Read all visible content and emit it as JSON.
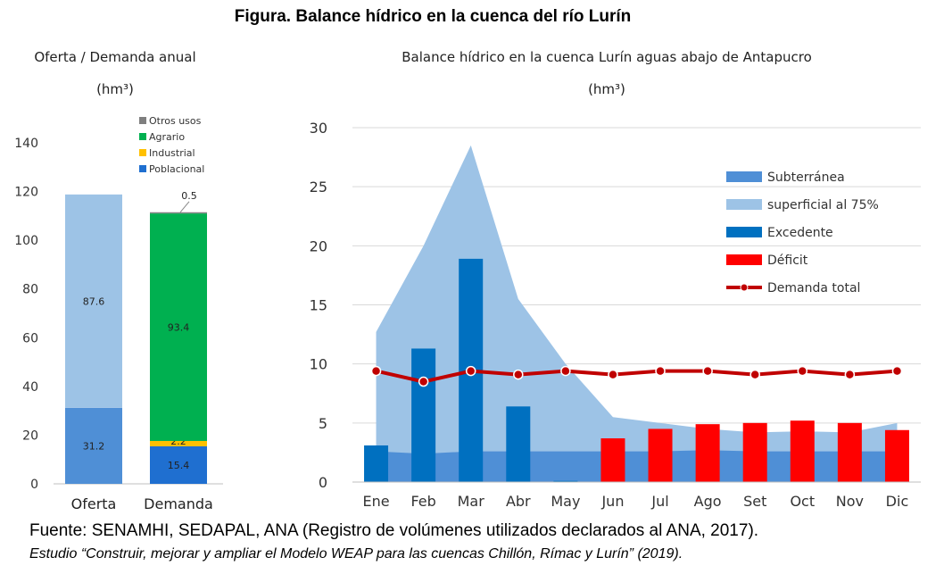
{
  "figure_title": "Figura. Balance hídrico en la cuenca del río Lurín",
  "chart_left": {
    "title": "Oferta / Demanda anual",
    "unit": "(hm³)"
  },
  "chart_right": {
    "title": "Balance hídrico en la cuenca Lurín aguas abajo de Antapucro",
    "unit": "(hm³)"
  },
  "source_line": "Fuente: SENAMHI, SEDAPAL, ANA (Registro de volúmenes utilizados declarados al ANA, 2017).",
  "study_line": "Estudio “Construir, mejorar y ampliar el Modelo WEAP para las cuencas Chillón, Rímac y Lurín” (2019).",
  "colors": {
    "poblacional": "#1f6fd0",
    "industrial": "#ffc000",
    "agrario": "#00b050",
    "otros": "#7f7f7f",
    "oferta_superficial": "#9dc3e6",
    "oferta_subterranea": "#4f8fd6",
    "subterranea": "#4f8fd6",
    "superficial": "#9dc3e6",
    "excedente": "#0070c0",
    "deficit": "#ff0000",
    "demanda": "#c00000"
  },
  "chart_data": [
    {
      "type": "bar",
      "stacked": true,
      "categories": [
        "Oferta",
        "Demanda"
      ],
      "ylim": [
        0,
        140
      ],
      "yticks": [
        0,
        20,
        40,
        60,
        80,
        100,
        120,
        140
      ],
      "legend": [
        "Otros usos",
        "Agrario",
        "Industrial",
        "Poblacional"
      ],
      "legend_position": "top-right",
      "series": [
        {
          "category": "Oferta",
          "segments": [
            {
              "key": "oferta_subterranea",
              "value": 31.2,
              "label": "31.2"
            },
            {
              "key": "oferta_superficial",
              "value": 87.6,
              "label": "87.6"
            }
          ]
        },
        {
          "category": "Demanda",
          "segments": [
            {
              "key": "poblacional",
              "value": 15.4,
              "label": "15.4"
            },
            {
              "key": "industrial",
              "value": 2.2,
              "label": "2.2"
            },
            {
              "key": "agrario",
              "value": 93.4,
              "label": "93.4"
            },
            {
              "key": "otros",
              "value": 0.5,
              "label": "0.5"
            }
          ]
        }
      ]
    },
    {
      "type": "bar",
      "categories": [
        "Ene",
        "Feb",
        "Mar",
        "Abr",
        "May",
        "Jun",
        "Jul",
        "Ago",
        "Set",
        "Oct",
        "Nov",
        "Dic"
      ],
      "ylim": [
        0,
        30
      ],
      "yticks": [
        0,
        5,
        10,
        15,
        20,
        25,
        30
      ],
      "grid": true,
      "legend_position": "top-right",
      "series": [
        {
          "name": "Subterránea",
          "type": "area",
          "values": [
            2.6,
            2.4,
            2.6,
            2.6,
            2.6,
            2.6,
            2.6,
            2.7,
            2.6,
            2.6,
            2.6,
            2.6
          ]
        },
        {
          "name": "superficial al 75%",
          "type": "area",
          "values": [
            12.7,
            20.0,
            28.5,
            15.5,
            10.0,
            5.5,
            5.0,
            4.5,
            4.2,
            4.3,
            4.2,
            5.0
          ]
        },
        {
          "name": "Excedente",
          "type": "bar",
          "values": [
            3.1,
            11.3,
            18.9,
            6.4,
            0.1,
            0,
            0,
            0,
            0,
            0,
            0,
            0
          ]
        },
        {
          "name": "Déficit",
          "type": "bar",
          "values": [
            0,
            0,
            0,
            0,
            0,
            3.7,
            4.5,
            4.9,
            5.0,
            5.2,
            5.0,
            4.4
          ]
        },
        {
          "name": "Demanda total",
          "type": "line",
          "values": [
            9.4,
            8.5,
            9.4,
            9.1,
            9.4,
            9.1,
            9.4,
            9.4,
            9.1,
            9.4,
            9.1,
            9.4
          ]
        }
      ]
    }
  ]
}
